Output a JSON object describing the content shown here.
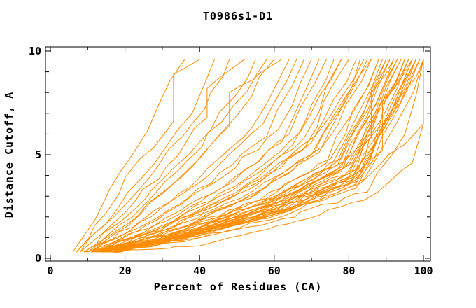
{
  "chart_data": {
    "type": "line",
    "title": "T0986s1-D1",
    "xlabel": "Percent of Residues (CA)",
    "ylabel": "Distance Cutoff, A",
    "xlim": [
      0,
      100
    ],
    "ylim": [
      0,
      10
    ],
    "x_ticks": [
      0,
      20,
      40,
      60,
      80,
      100
    ],
    "x_minor_ticks": [
      10,
      30,
      50,
      70,
      90
    ],
    "y_ticks": [
      0,
      5,
      10
    ],
    "y_minor_ticks": [
      1,
      2,
      3,
      4,
      6,
      7,
      8,
      9
    ],
    "grid": false,
    "legend": false,
    "line_color": "#FF8C00",
    "axis_color": "#000000",
    "background": "#FFFFFF",
    "curves": [
      [
        [
          6,
          0.3
        ],
        [
          14,
          2.6
        ],
        [
          22,
          5.0
        ],
        [
          29,
          7.4
        ],
        [
          36,
          9.6
        ]
      ],
      [
        [
          7,
          0.3
        ],
        [
          15,
          2.2
        ],
        [
          24,
          4.8
        ],
        [
          33,
          6.6
        ],
        [
          33,
          8.9
        ],
        [
          40,
          9.6
        ]
      ],
      [
        [
          8,
          0.3
        ],
        [
          18,
          2.4
        ],
        [
          28,
          4.6
        ],
        [
          38,
          7.0
        ],
        [
          44,
          9.6
        ]
      ],
      [
        [
          7,
          0.3
        ],
        [
          17,
          2.0
        ],
        [
          27,
          4.0
        ],
        [
          38,
          6.5
        ],
        [
          43,
          8.0
        ],
        [
          48,
          9.6
        ]
      ],
      [
        [
          9,
          0.3
        ],
        [
          20,
          2.2
        ],
        [
          31,
          4.4
        ],
        [
          42,
          6.8
        ],
        [
          42,
          8.2
        ],
        [
          52,
          9.6
        ]
      ],
      [
        [
          8,
          0.3
        ],
        [
          19,
          1.8
        ],
        [
          30,
          3.8
        ],
        [
          43,
          6.2
        ],
        [
          55,
          9.6
        ]
      ],
      [
        [
          10,
          0.3
        ],
        [
          22,
          2.0
        ],
        [
          34,
          4.2
        ],
        [
          46,
          6.6
        ],
        [
          58,
          9.6
        ]
      ],
      [
        [
          9,
          0.3
        ],
        [
          21,
          1.7
        ],
        [
          35,
          3.9
        ],
        [
          48,
          6.4
        ],
        [
          48,
          8.0
        ],
        [
          62,
          9.6
        ]
      ],
      [
        [
          11,
          0.3
        ],
        [
          24,
          2.1
        ],
        [
          37,
          4.3
        ],
        [
          50,
          6.9
        ],
        [
          60,
          9.6
        ]
      ],
      [
        [
          10,
          0.3
        ],
        [
          25,
          1.9
        ],
        [
          40,
          3.9
        ],
        [
          54,
          6.3
        ],
        [
          64,
          9.6
        ]
      ],
      [
        [
          11,
          0.3
        ],
        [
          27,
          2.0
        ],
        [
          43,
          4.1
        ],
        [
          57,
          6.5
        ],
        [
          66,
          9.6
        ]
      ],
      [
        [
          9,
          0.3
        ],
        [
          26,
          1.7
        ],
        [
          43,
          3.6
        ],
        [
          58,
          5.9
        ],
        [
          68,
          9.6
        ]
      ],
      [
        [
          12,
          0.3
        ],
        [
          29,
          1.9
        ],
        [
          46,
          3.9
        ],
        [
          61,
          6.2
        ],
        [
          70,
          9.6
        ]
      ],
      [
        [
          10,
          0.3
        ],
        [
          28,
          1.6
        ],
        [
          46,
          3.4
        ],
        [
          62,
          5.6
        ],
        [
          72,
          9.6
        ]
      ],
      [
        [
          13,
          0.3
        ],
        [
          31,
          1.8
        ],
        [
          49,
          3.7
        ],
        [
          64,
          6.0
        ],
        [
          74,
          9.6
        ]
      ],
      [
        [
          11,
          0.3
        ],
        [
          30,
          1.5
        ],
        [
          49,
          3.3
        ],
        [
          65,
          5.5
        ],
        [
          76,
          9.6
        ]
      ],
      [
        [
          12,
          0.3
        ],
        [
          32,
          1.6
        ],
        [
          52,
          3.5
        ],
        [
          68,
          5.8
        ],
        [
          78,
          9.6
        ]
      ],
      [
        [
          14,
          0.3
        ],
        [
          33,
          1.8
        ],
        [
          52,
          3.8
        ],
        [
          67,
          6.1
        ],
        [
          72,
          7.8
        ],
        [
          78,
          9.6
        ]
      ],
      [
        [
          10,
          0.3
        ],
        [
          30,
          1.4
        ],
        [
          50,
          3.1
        ],
        [
          68,
          5.3
        ],
        [
          80,
          9.6
        ]
      ],
      [
        [
          13,
          0.3
        ],
        [
          33,
          1.5
        ],
        [
          53,
          3.3
        ],
        [
          70,
          5.6
        ],
        [
          82,
          9.6
        ]
      ],
      [
        [
          12,
          0.3
        ],
        [
          33,
          1.4
        ],
        [
          54,
          3.1
        ],
        [
          71,
          5.2
        ],
        [
          77,
          7.0
        ],
        [
          83,
          9.6
        ]
      ],
      [
        [
          15,
          0.3
        ],
        [
          35,
          1.7
        ],
        [
          55,
          3.6
        ],
        [
          71,
          5.9
        ],
        [
          84,
          9.6
        ]
      ],
      [
        [
          11,
          0.3
        ],
        [
          32,
          1.3
        ],
        [
          54,
          3.0
        ],
        [
          72,
          5.1
        ],
        [
          85,
          9.6
        ]
      ],
      [
        [
          14,
          0.3
        ],
        [
          35,
          1.5
        ],
        [
          56,
          3.2
        ],
        [
          73,
          5.4
        ],
        [
          86,
          9.6
        ]
      ],
      [
        [
          9,
          0.3
        ],
        [
          29,
          1.3
        ],
        [
          51,
          2.9
        ],
        [
          70,
          5.0
        ],
        [
          86,
          9.6
        ]
      ],
      [
        [
          12,
          0.3
        ],
        [
          34,
          1.3
        ],
        [
          56,
          2.8
        ],
        [
          74,
          4.6
        ],
        [
          81,
          7.0
        ],
        [
          88,
          9.6
        ]
      ],
      [
        [
          14,
          0.3
        ],
        [
          36,
          1.4
        ],
        [
          58,
          2.9
        ],
        [
          75,
          4.8
        ],
        [
          88,
          9.6
        ]
      ],
      [
        [
          11,
          0.3
        ],
        [
          33,
          1.2
        ],
        [
          56,
          2.6
        ],
        [
          75,
          4.4
        ],
        [
          82,
          6.8
        ],
        [
          89,
          9.6
        ]
      ],
      [
        [
          15,
          0.3
        ],
        [
          37,
          1.4
        ],
        [
          59,
          2.9
        ],
        [
          77,
          4.7
        ],
        [
          90,
          9.6
        ]
      ],
      [
        [
          13,
          0.3
        ],
        [
          35,
          1.2
        ],
        [
          58,
          2.7
        ],
        [
          77,
          4.5
        ],
        [
          84,
          7.0
        ],
        [
          90,
          9.6
        ]
      ],
      [
        [
          16,
          0.3
        ],
        [
          38,
          1.4
        ],
        [
          60,
          2.9
        ],
        [
          78,
          4.8
        ],
        [
          91,
          9.6
        ]
      ],
      [
        [
          12,
          0.3
        ],
        [
          34,
          1.1
        ],
        [
          57,
          2.5
        ],
        [
          77,
          4.3
        ],
        [
          85,
          6.9
        ],
        [
          91,
          9.6
        ]
      ],
      [
        [
          14,
          0.3
        ],
        [
          36,
          1.2
        ],
        [
          59,
          2.6
        ],
        [
          78,
          4.4
        ],
        [
          92,
          9.6
        ]
      ],
      [
        [
          17,
          0.3
        ],
        [
          39,
          1.4
        ],
        [
          61,
          2.9
        ],
        [
          79,
          4.7
        ],
        [
          86,
          5.8
        ],
        [
          86,
          8.0
        ],
        [
          92,
          9.6
        ]
      ],
      [
        [
          13,
          0.3
        ],
        [
          35,
          1.1
        ],
        [
          58,
          2.4
        ],
        [
          78,
          4.2
        ],
        [
          93,
          9.6
        ]
      ],
      [
        [
          15,
          0.3
        ],
        [
          37,
          1.2
        ],
        [
          60,
          2.6
        ],
        [
          79,
          4.4
        ],
        [
          87,
          7.0
        ],
        [
          93,
          9.6
        ]
      ],
      [
        [
          16,
          0.3
        ],
        [
          38,
          1.3
        ],
        [
          61,
          2.7
        ],
        [
          80,
          4.5
        ],
        [
          94,
          9.6
        ]
      ],
      [
        [
          12,
          0.3
        ],
        [
          34,
          1.0
        ],
        [
          58,
          2.3
        ],
        [
          79,
          4.0
        ],
        [
          87,
          6.6
        ],
        [
          94,
          9.6
        ]
      ],
      [
        [
          14,
          0.3
        ],
        [
          36,
          1.1
        ],
        [
          59,
          2.4
        ],
        [
          80,
          4.1
        ],
        [
          95,
          9.6
        ]
      ],
      [
        [
          18,
          0.3
        ],
        [
          40,
          1.4
        ],
        [
          62,
          2.8
        ],
        [
          81,
          4.6
        ],
        [
          88,
          7.1
        ],
        [
          95,
          9.6
        ]
      ],
      [
        [
          13,
          0.3
        ],
        [
          35,
          1.0
        ],
        [
          59,
          2.2
        ],
        [
          80,
          3.9
        ],
        [
          95,
          9.6
        ]
      ],
      [
        [
          15,
          0.3
        ],
        [
          37,
          1.1
        ],
        [
          60,
          2.4
        ],
        [
          81,
          4.0
        ],
        [
          89,
          6.8
        ],
        [
          96,
          9.6
        ]
      ],
      [
        [
          17,
          0.3
        ],
        [
          39,
          1.3
        ],
        [
          62,
          2.6
        ],
        [
          82,
          4.3
        ],
        [
          96,
          9.6
        ]
      ],
      [
        [
          14,
          0.3
        ],
        [
          36,
          1.0
        ],
        [
          60,
          2.2
        ],
        [
          81,
          3.8
        ],
        [
          89,
          5.2
        ],
        [
          89,
          7.6
        ],
        [
          97,
          9.6
        ]
      ],
      [
        [
          16,
          0.3
        ],
        [
          38,
          1.1
        ],
        [
          61,
          2.4
        ],
        [
          82,
          4.0
        ],
        [
          97,
          9.6
        ]
      ],
      [
        [
          12,
          0.3
        ],
        [
          34,
          0.9
        ],
        [
          58,
          2.0
        ],
        [
          80,
          3.6
        ],
        [
          90,
          6.4
        ],
        [
          97,
          9.6
        ]
      ],
      [
        [
          15,
          0.3
        ],
        [
          37,
          1.0
        ],
        [
          61,
          2.2
        ],
        [
          82,
          3.8
        ],
        [
          98,
          9.6
        ]
      ],
      [
        [
          18,
          0.3
        ],
        [
          40,
          1.3
        ],
        [
          63,
          2.6
        ],
        [
          83,
          4.2
        ],
        [
          91,
          7.0
        ],
        [
          98,
          9.6
        ]
      ],
      [
        [
          13,
          0.3
        ],
        [
          36,
          0.8
        ],
        [
          60,
          1.9
        ],
        [
          82,
          3.4
        ],
        [
          98,
          9.6
        ]
      ],
      [
        [
          16,
          0.3
        ],
        [
          38,
          1.1
        ],
        [
          62,
          2.3
        ],
        [
          83,
          3.9
        ],
        [
          92,
          6.8
        ],
        [
          99,
          9.6
        ]
      ],
      [
        [
          14,
          0.3
        ],
        [
          36,
          1.0
        ],
        [
          60,
          2.1
        ],
        [
          82,
          3.6
        ],
        [
          99,
          9.6
        ]
      ],
      [
        [
          17,
          0.3
        ],
        [
          39,
          1.2
        ],
        [
          62,
          2.4
        ],
        [
          83,
          4.0
        ],
        [
          92,
          7.0
        ],
        [
          100,
          9.6
        ]
      ],
      [
        [
          15,
          0.3
        ],
        [
          37,
          1.0
        ],
        [
          61,
          2.1
        ],
        [
          83,
          3.6
        ],
        [
          100,
          6.5
        ],
        [
          100,
          9.6
        ]
      ],
      [
        [
          16,
          0.3
        ],
        [
          38,
          1.1
        ],
        [
          62,
          2.2
        ],
        [
          84,
          3.8
        ],
        [
          93,
          6.6
        ],
        [
          100,
          9.6
        ]
      ],
      [
        [
          13,
          0.3
        ],
        [
          35,
          0.85
        ],
        [
          62,
          1.9
        ],
        [
          85,
          3.2
        ],
        [
          95,
          6.0
        ],
        [
          100,
          9.6
        ]
      ],
      [
        [
          16,
          0.25
        ],
        [
          40,
          0.6
        ],
        [
          66,
          1.8
        ],
        [
          84,
          2.8
        ],
        [
          97,
          4.6
        ],
        [
          100,
          6.5
        ],
        [
          100,
          9.6
        ]
      ]
    ]
  }
}
